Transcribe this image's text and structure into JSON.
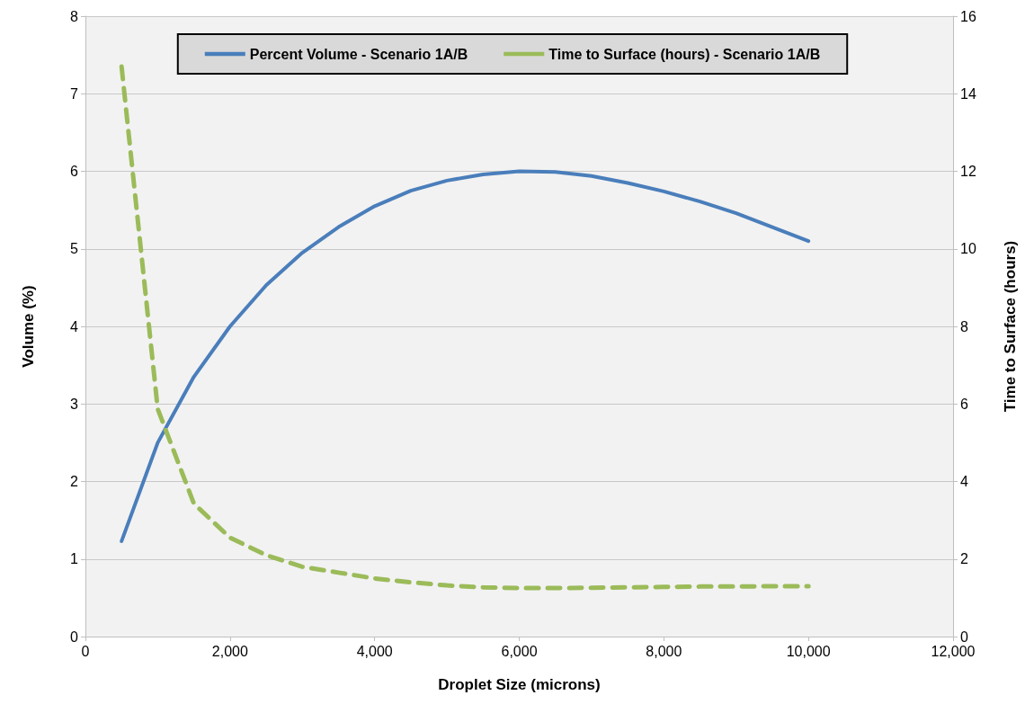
{
  "chart_data": {
    "type": "line",
    "xlabel": "Droplet Size (microns)",
    "ylabel": "Volume (%)",
    "y2label": "Time to Surface (hours)",
    "x": [
      500,
      1000,
      1500,
      2000,
      2500,
      3000,
      3500,
      4000,
      4500,
      5000,
      5500,
      6000,
      6500,
      7000,
      7500,
      8000,
      8500,
      9000,
      9500,
      10000
    ],
    "series": [
      {
        "name": "Percent Volume - Scenario 1A/B",
        "color": "#4a7ebb",
        "line_style": "solid",
        "values": [
          1.23,
          2.5,
          3.35,
          4.0,
          4.53,
          4.95,
          5.28,
          5.55,
          5.75,
          5.88,
          5.96,
          6.0,
          5.99,
          5.94,
          5.85,
          5.74,
          5.61,
          5.46,
          5.28,
          5.1
        ]
      },
      {
        "name": "Time to Surface (hours) - Scenario 1A/B",
        "color": "#9bbb59",
        "line_style": "dashed",
        "axis": "y2",
        "values": [
          14.7,
          5.87,
          3.43,
          2.55,
          2.1,
          1.8,
          1.65,
          1.5,
          1.4,
          1.32,
          1.27,
          1.25,
          1.25,
          1.26,
          1.27,
          1.28,
          1.29,
          1.29,
          1.3,
          1.3
        ]
      }
    ],
    "xlim": [
      0,
      12000
    ],
    "xticks": [
      {
        "value": 0,
        "label": "0"
      },
      {
        "value": 2000,
        "label": "2,000"
      },
      {
        "value": 4000,
        "label": "4,000"
      },
      {
        "value": 6000,
        "label": "6,000"
      },
      {
        "value": 8000,
        "label": "8,000"
      },
      {
        "value": 10000,
        "label": "10,000"
      },
      {
        "value": 12000,
        "label": "12,000"
      }
    ],
    "ylim": [
      0,
      8
    ],
    "yticks": [
      0,
      1,
      2,
      3,
      4,
      5,
      6,
      7,
      8
    ],
    "y2lim": [
      0,
      16
    ],
    "y2ticks": [
      0,
      2,
      4,
      6,
      8,
      10,
      12,
      14,
      16
    ],
    "grid": "y",
    "legend": "top",
    "marker": "none"
  }
}
